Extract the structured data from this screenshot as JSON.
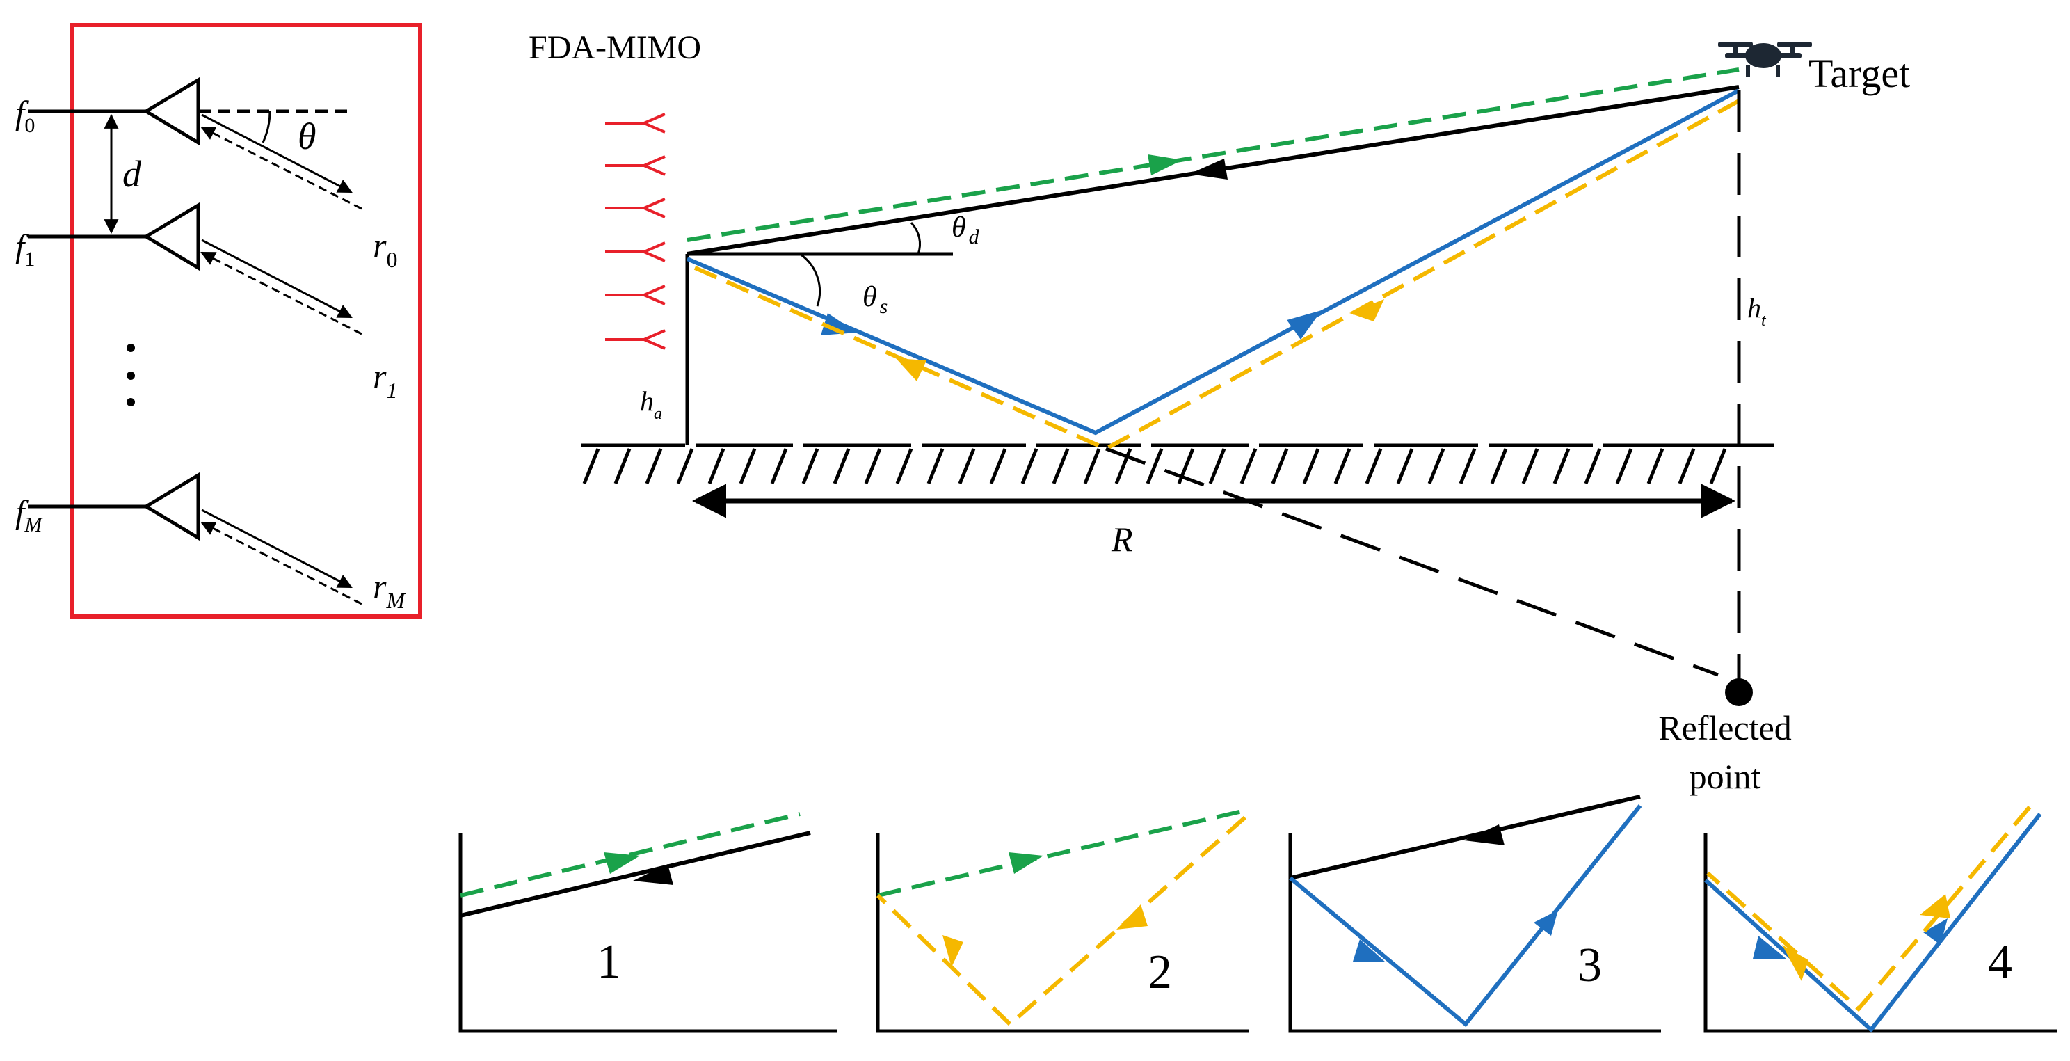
{
  "array_labels": {
    "f0": {
      "base": "f",
      "sub": "0"
    },
    "f1": {
      "base": "f",
      "sub": "1"
    },
    "fM": {
      "base": "f",
      "sub": "M"
    },
    "d": "d",
    "theta": "θ",
    "r0": {
      "base": "r",
      "sub": "0"
    },
    "r1": {
      "base": "r",
      "sub": "1"
    },
    "rM": {
      "base": "r",
      "sub": "M"
    }
  },
  "scene_labels": {
    "fda_mimo": "FDA-MIMO",
    "target": "Target",
    "theta_d": {
      "base": "θ",
      "sub": "d"
    },
    "theta_s": {
      "base": "θ",
      "sub": "s"
    },
    "h_a": {
      "base": "h",
      "sub": "a"
    },
    "h_t": {
      "base": "h",
      "sub": "t"
    },
    "range": "R",
    "reflected_point_line1": "Reflected",
    "reflected_point_line2": "point"
  },
  "path_panels": [
    {
      "number": "1"
    },
    {
      "number": "2"
    },
    {
      "number": "3"
    },
    {
      "number": "4"
    }
  ],
  "colors": {
    "direct_transmit": "#1aa24a",
    "direct_receive": "#000000",
    "multipath_transmit": "#1f6fbf",
    "multipath_receive": "#f5b800",
    "array_elements": "#e8202a",
    "array_box": "#e8202a"
  },
  "icons": {
    "target": "drone-icon",
    "reflected_point": "filled-circle-icon"
  }
}
